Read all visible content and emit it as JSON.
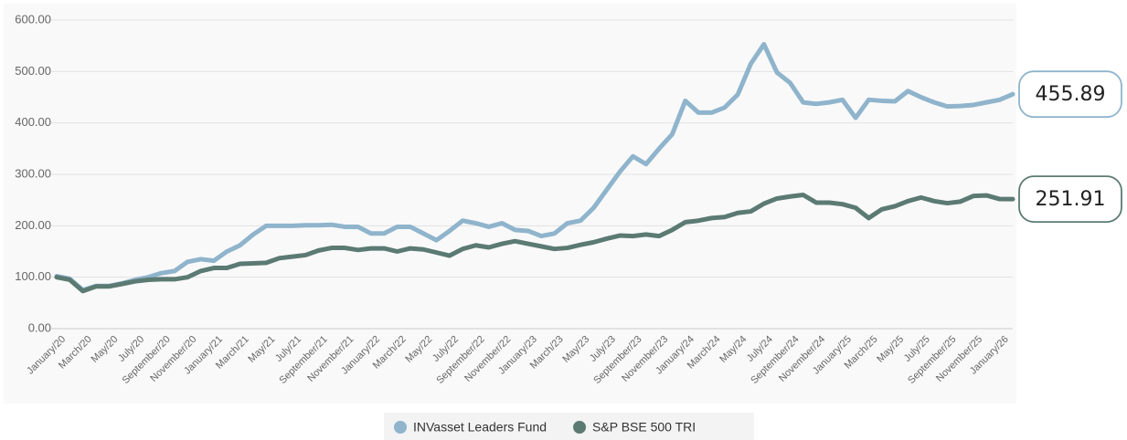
{
  "chart_data": {
    "type": "line",
    "categories": [
      "January/20",
      null,
      "March/20",
      null,
      "May/20",
      null,
      "July/20",
      null,
      "September/20",
      null,
      "November/20",
      null,
      "January/21",
      null,
      "March/21",
      null,
      "May/21",
      null,
      "July/21",
      null,
      "September/21",
      null,
      "November/21",
      null,
      "January/22",
      null,
      "March/22",
      null,
      "May/22",
      null,
      "July/22",
      null,
      "September/22",
      null,
      "November/22",
      null,
      "January/23",
      null,
      "March/23",
      null,
      "May/23",
      null,
      "July/23",
      null,
      "September/23",
      null,
      "November/23",
      null,
      "January/24",
      null,
      "March/24",
      null,
      "May/24",
      null,
      "July/24",
      null,
      "September/24",
      null,
      "November/24",
      null,
      "January/25",
      null,
      "March/25",
      null,
      "May/25",
      null,
      "July/25",
      null,
      "September/25",
      null,
      "November/25",
      null,
      "January/26",
      null
    ],
    "series": [
      {
        "name": "INVasset Leaders Fund",
        "color": "#8fb4cc",
        "values": [
          102,
          97,
          75,
          83,
          83,
          88,
          95,
          100,
          108,
          112,
          130,
          135,
          132,
          150,
          162,
          183,
          200,
          200,
          200,
          201,
          201,
          202,
          198,
          198,
          185,
          185,
          198,
          198,
          185,
          172,
          190,
          210,
          205,
          198,
          205,
          192,
          190,
          180,
          185,
          205,
          210,
          235,
          270,
          305,
          335,
          320,
          350,
          378,
          443,
          420,
          420,
          430,
          455,
          515,
          553,
          498,
          478,
          440,
          437,
          440,
          445,
          410,
          445,
          443,
          442,
          462,
          450,
          440,
          432,
          433,
          435,
          440,
          445,
          455.89
        ]
      },
      {
        "name": "S&P BSE 500 TRI",
        "color": "#5b7a72",
        "values": [
          100,
          95,
          73,
          82,
          82,
          87,
          92,
          95,
          96,
          96,
          100,
          112,
          118,
          118,
          126,
          127,
          128,
          137,
          140,
          143,
          152,
          157,
          157,
          153,
          156,
          156,
          150,
          156,
          154,
          148,
          142,
          155,
          162,
          158,
          165,
          170,
          165,
          160,
          155,
          157,
          163,
          168,
          175,
          181,
          180,
          183,
          180,
          192,
          207,
          210,
          215,
          217,
          225,
          228,
          243,
          253,
          257,
          260,
          245,
          245,
          242,
          235,
          215,
          232,
          238,
          248,
          255,
          248,
          244,
          247,
          258,
          259,
          252,
          251.91
        ]
      }
    ],
    "ylim": [
      0,
      600
    ],
    "yticks": [
      {
        "value": 0,
        "label": "0.00"
      },
      {
        "value": 100,
        "label": "100.00"
      },
      {
        "value": 200,
        "label": "200.00"
      },
      {
        "value": 300,
        "label": "300.00"
      },
      {
        "value": 400,
        "label": "400.00"
      },
      {
        "value": 500,
        "label": "500.00"
      },
      {
        "value": 600,
        "label": "600.00"
      }
    ],
    "grid": true,
    "legend": "bottom"
  }
}
